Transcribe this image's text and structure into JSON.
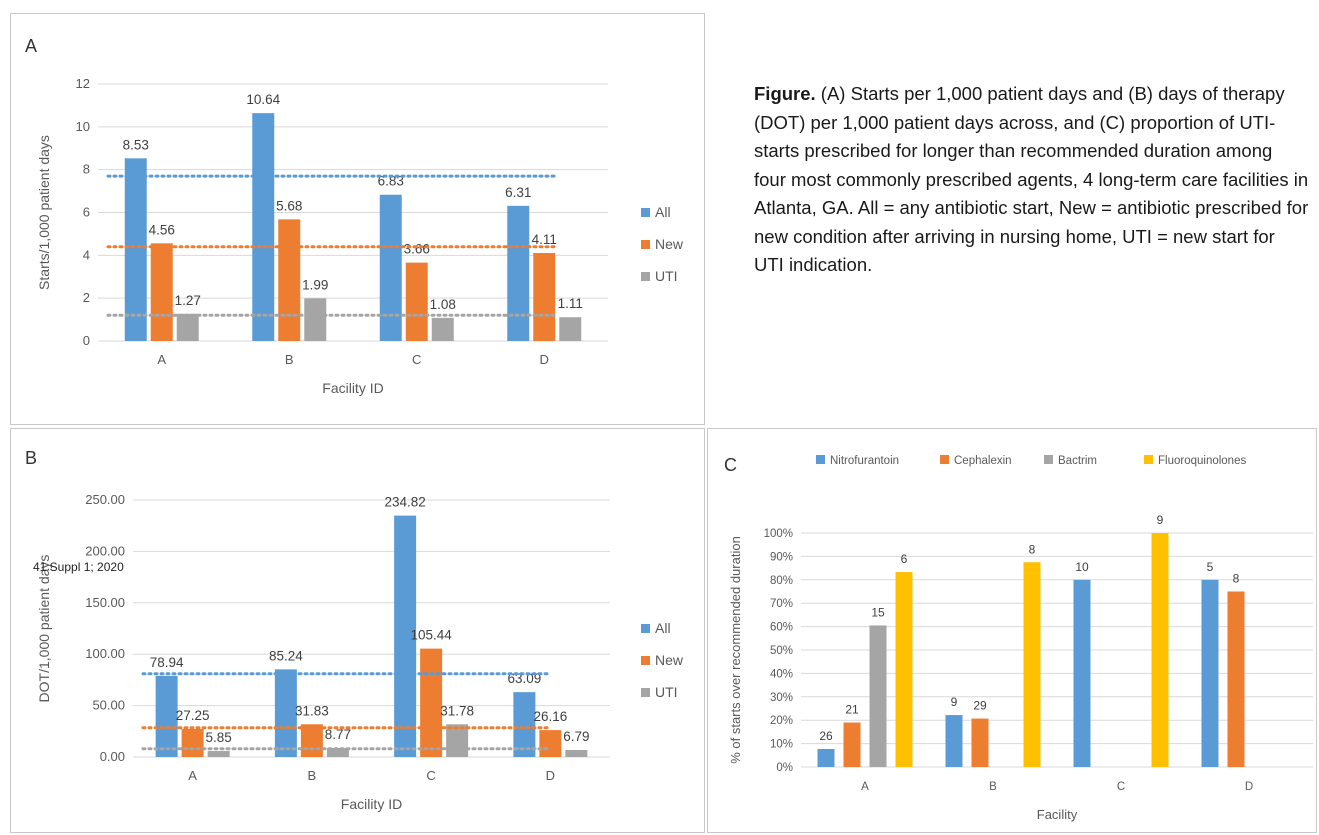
{
  "caption": {
    "label": "Figure.",
    "text": " (A) Starts per 1,000 patient days and (B) days of therapy (DOT) per 1,000 patient days across, and (C) proportion of UTI-starts prescribed for longer than recommended duration among four most commonly prescribed agents, 4 long-term care facilities in Atlanta, GA.  All = any antibiotic start, New = antibiotic prescribed for new condition after arriving in nursing home, UTI = new start for UTI indication."
  },
  "overlay_text": "41 Suppl 1; 2020",
  "colors": {
    "all": "#5b9bd5",
    "new": "#ed7d31",
    "uti": "#a5a5a5",
    "fluoro": "#ffc000",
    "grid": "#d9d9d9"
  },
  "chart_data": [
    {
      "panel": "A",
      "type": "bar",
      "title": "",
      "xlabel": "Facility ID",
      "ylabel": "Starts/1,000 patient days",
      "categories": [
        "A",
        "B",
        "C",
        "D"
      ],
      "ylim": [
        0,
        12
      ],
      "yticks": [
        "0",
        "2",
        "4",
        "6",
        "8",
        "10",
        "12"
      ],
      "grid": true,
      "legend": "right",
      "series": [
        {
          "name": "All",
          "color": "#5b9bd5",
          "values": [
            8.53,
            10.64,
            6.83,
            6.31
          ],
          "labels": [
            "8.53",
            "10.64",
            "6.83",
            "6.31"
          ],
          "mean": 7.7
        },
        {
          "name": "New",
          "color": "#ed7d31",
          "values": [
            4.56,
            5.68,
            3.66,
            4.11
          ],
          "labels": [
            "4.56",
            "5.68",
            "3.66",
            "4.11"
          ],
          "mean": 4.4
        },
        {
          "name": "UTI",
          "color": "#a5a5a5",
          "values": [
            1.27,
            1.99,
            1.08,
            1.11
          ],
          "labels": [
            "1.27",
            "1.99",
            "1.08",
            "1.11"
          ],
          "mean": 1.2
        }
      ]
    },
    {
      "panel": "B",
      "type": "bar",
      "title": "",
      "xlabel": "Facility ID",
      "ylabel": "DOT/1,000 patient days",
      "categories": [
        "A",
        "B",
        "C",
        "D"
      ],
      "ylim": [
        0,
        250
      ],
      "yticks": [
        "0.00",
        "50.00",
        "100.00",
        "150.00",
        "200.00",
        "250.00"
      ],
      "grid": true,
      "legend": "right",
      "series": [
        {
          "name": "All",
          "color": "#5b9bd5",
          "values": [
            78.94,
            85.24,
            234.82,
            63.09
          ],
          "labels": [
            "78.94",
            "85.24",
            "234.82",
            "63.09"
          ],
          "mean": 81.0
        },
        {
          "name": "New",
          "color": "#ed7d31",
          "values": [
            27.25,
            31.83,
            105.44,
            26.16
          ],
          "labels": [
            "27.25",
            "31.83",
            "105.44",
            "26.16"
          ],
          "mean": 28.5
        },
        {
          "name": "UTI",
          "color": "#a5a5a5",
          "values": [
            5.85,
            8.77,
            31.78,
            6.79
          ],
          "labels": [
            "5.85",
            "8.77",
            "31.78",
            "6.79"
          ],
          "mean": 8.0
        }
      ]
    },
    {
      "panel": "C",
      "type": "bar",
      "title": "",
      "xlabel": "Facility",
      "ylabel": "% of starts over recommended duration",
      "categories": [
        "A",
        "B",
        "C",
        "D"
      ],
      "ylim": [
        0,
        100
      ],
      "yticks": [
        "0%",
        "10%",
        "20%",
        "30%",
        "40%",
        "50%",
        "60%",
        "70%",
        "80%",
        "90%",
        "100%"
      ],
      "grid": true,
      "legend": "top",
      "series": [
        {
          "name": "Nitrofurantoin",
          "color": "#5b9bd5",
          "values": [
            7.7,
            22.2,
            80,
            80
          ],
          "labels": [
            "26",
            "9",
            "10",
            "5"
          ]
        },
        {
          "name": "Cephalexin",
          "color": "#ed7d31",
          "values": [
            19,
            20.7,
            null,
            75
          ],
          "labels": [
            "21",
            "29",
            "",
            "8"
          ]
        },
        {
          "name": "Bactrim",
          "color": "#a5a5a5",
          "values": [
            60.5,
            null,
            null,
            null
          ],
          "labels": [
            "15",
            "",
            "",
            ""
          ]
        },
        {
          "name": "Fluoroquinolones",
          "color": "#ffc000",
          "values": [
            83.3,
            87.5,
            100,
            null
          ],
          "labels": [
            "6",
            "8",
            "9",
            ""
          ]
        }
      ]
    }
  ]
}
